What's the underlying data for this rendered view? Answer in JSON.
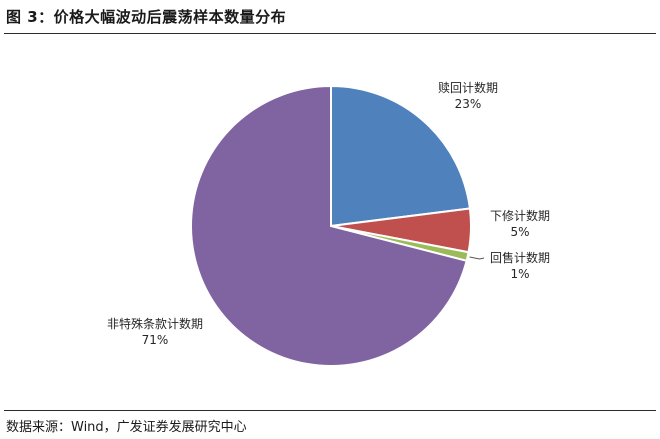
{
  "figure": {
    "title": "图 3：价格大幅波动后震荡样本数量分布",
    "source": "数据来源：Wind，广发证券发展研究中心"
  },
  "colors": {
    "赎回计数期": "#4F81BD",
    "下修计数期": "#C0504D",
    "回售计数期": "#9BBB59",
    "非特殊条款计数期": "#8064A2"
  },
  "chart_data": {
    "type": "pie",
    "title": "",
    "start_angle_deg": 0,
    "direction": "clockwise",
    "slices": [
      {
        "label": "赎回计数期",
        "value": 23,
        "value_label": "23%"
      },
      {
        "label": "下修计数期",
        "value": 5,
        "value_label": "5%"
      },
      {
        "label": "回售计数期",
        "value": 1,
        "value_label": "1%"
      },
      {
        "label": "非特殊条款计数期",
        "value": 71,
        "value_label": "71%"
      }
    ]
  }
}
